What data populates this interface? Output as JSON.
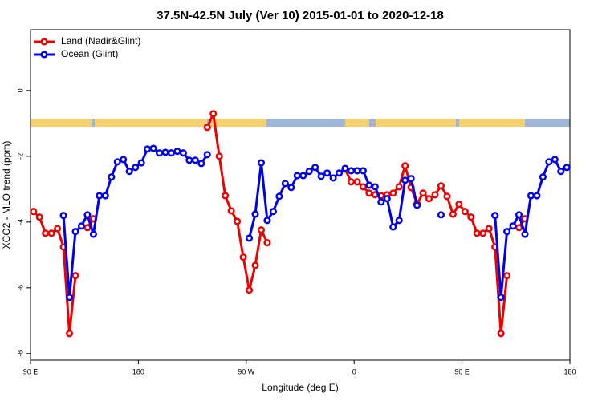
{
  "chart_data": {
    "type": "line",
    "title": "37.5N-42.5N July (Ver 10)   2015-01-01 to 2020-12-18",
    "x_label": "Longitude (deg E)",
    "y_label": "XCO2 - MLO trend (ppm)",
    "xlim": [
      90,
      540
    ],
    "ylim": [
      -8.2,
      1.85
    ],
    "xticks": [
      {
        "value": 90,
        "label": "90 E"
      },
      {
        "value": 180,
        "label": "180"
      },
      {
        "value": 270,
        "label": "90 W"
      },
      {
        "value": 360,
        "label": "0"
      },
      {
        "value": 450,
        "label": "90 E"
      },
      {
        "value": 540,
        "label": "180"
      }
    ],
    "yticks": [
      0,
      -2,
      -4,
      -6,
      -8
    ],
    "legend": "top-left",
    "x": [
      92.5,
      97.5,
      102.5,
      107.5,
      112.5,
      117.5,
      122.5,
      127.5,
      132.5,
      137.5,
      142.5,
      147.5,
      152.5,
      157.5,
      162.5,
      167.5,
      172.5,
      177.5,
      182.5,
      187.5,
      192.5,
      197.5,
      202.5,
      207.5,
      212.5,
      217.5,
      222.5,
      227.5,
      232.5,
      237.5,
      242.5,
      247.5,
      252.5,
      257.5,
      262.5,
      267.5,
      272.5,
      277.5,
      282.5,
      287.5,
      292.5,
      297.5,
      302.5,
      307.5,
      312.5,
      317.5,
      322.5,
      327.5,
      332.5,
      337.5,
      342.5,
      347.5,
      352.5,
      357.5,
      362.5,
      367.5,
      372.5,
      377.5,
      382.5,
      387.5,
      392.5,
      397.5,
      402.5,
      407.5,
      412.5,
      417.5,
      422.5,
      427.5,
      432.5,
      437.5,
      442.5,
      447.5,
      452.5,
      457.5,
      462.5,
      467.5,
      472.5,
      477.5,
      482.5,
      487.5,
      492.5,
      497.5,
      502.5,
      507.5,
      512.5,
      517.5,
      522.5,
      527.5,
      532.5,
      537.5
    ],
    "series": [
      {
        "name": "Land (Nadir&Glint)",
        "color": "#ee0000",
        "values": [
          -3.68,
          -3.85,
          -4.34,
          -4.34,
          -4.2,
          -4.76,
          -7.39,
          -5.63,
          null,
          -4.17,
          -3.9,
          null,
          null,
          null,
          null,
          null,
          null,
          null,
          null,
          null,
          null,
          null,
          null,
          null,
          null,
          null,
          null,
          null,
          null,
          -1.12,
          -0.71,
          -2.0,
          -3.2,
          -3.66,
          -3.98,
          -5.07,
          -6.07,
          -5.32,
          -4.24,
          -4.63,
          null,
          null,
          null,
          null,
          null,
          null,
          null,
          null,
          null,
          null,
          null,
          null,
          -2.39,
          -2.78,
          -2.78,
          -2.93,
          -3.12,
          -3.17,
          -3.2,
          -3.17,
          -3.12,
          -2.93,
          -2.29,
          -2.95,
          -3.44,
          -3.12,
          -3.29,
          -3.17,
          -2.9,
          -3.22,
          -3.76,
          -3.46,
          -3.68,
          -3.85,
          -4.34,
          -4.34,
          -4.2,
          -4.76,
          -7.39,
          -5.63,
          null,
          -4.17,
          -3.9,
          null,
          null,
          null,
          null,
          null,
          null,
          null
        ]
      },
      {
        "name": "Ocean (Glint)",
        "color": "#0000ee",
        "values": [
          null,
          null,
          null,
          null,
          null,
          -3.8,
          -6.29,
          -4.29,
          -4.12,
          -3.78,
          -4.37,
          -3.2,
          -3.2,
          -2.63,
          -2.17,
          -2.1,
          -2.46,
          -2.34,
          -2.2,
          -1.78,
          -1.76,
          -1.9,
          -1.88,
          -1.9,
          -1.85,
          -1.9,
          -2.12,
          -2.12,
          -2.22,
          -1.95,
          null,
          null,
          null,
          null,
          null,
          null,
          -4.49,
          -3.76,
          -2.2,
          -3.95,
          -3.68,
          -3.22,
          -2.83,
          -2.95,
          -2.59,
          -2.59,
          -2.46,
          -2.34,
          -2.61,
          -2.51,
          -2.66,
          -2.51,
          -2.37,
          -2.44,
          -2.44,
          -2.44,
          -2.88,
          -2.93,
          -3.39,
          -3.29,
          -4.15,
          -3.95,
          -2.73,
          -2.68,
          -3.49,
          null,
          null,
          null,
          -3.78,
          null,
          null,
          null,
          null,
          null,
          null,
          null,
          null,
          -3.8,
          -6.29,
          -4.29,
          -4.12,
          -3.78,
          -4.37,
          -3.2,
          -3.2,
          -2.63,
          -2.17,
          -2.1,
          -2.46,
          -2.34
        ]
      }
    ]
  }
}
